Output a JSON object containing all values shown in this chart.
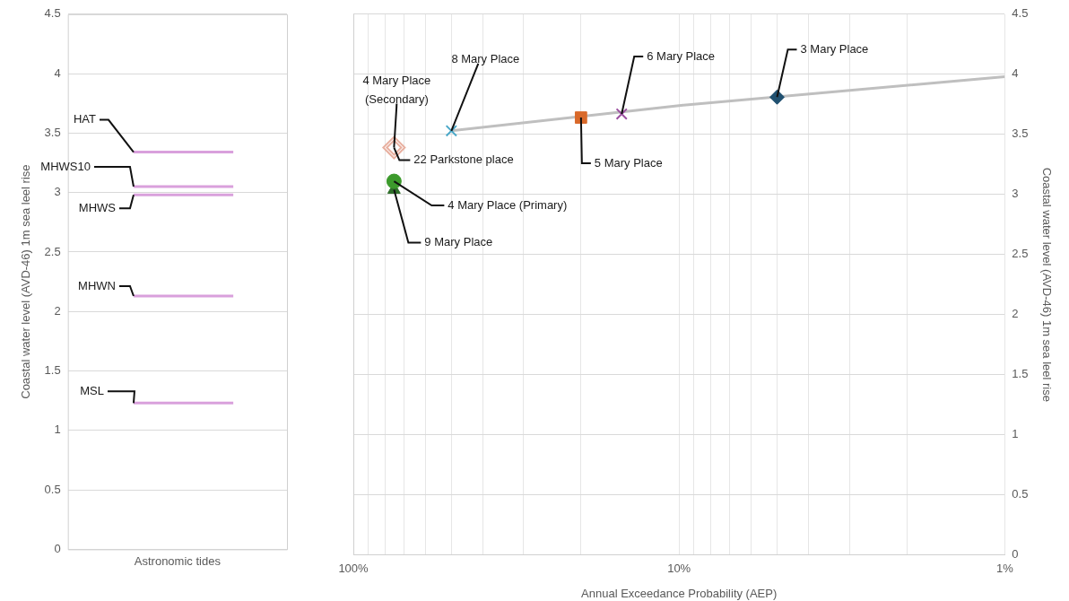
{
  "chart_data": [
    {
      "type": "line",
      "categories": [
        "Astronomic tides"
      ],
      "ylabel": "Coastal water level (AVD-46) 1m sea leel rise",
      "ylim": [
        0,
        4.5
      ],
      "yticks": [
        0,
        0.5,
        1,
        1.5,
        2,
        2.5,
        3,
        3.5,
        4,
        4.5
      ],
      "grid": "y",
      "ref_lines": [
        {
          "axis": "y",
          "value": 3.34,
          "label": "HAT",
          "color": "#d9a0dc"
        },
        {
          "axis": "y",
          "value": 3.05,
          "label": "MHWS10",
          "color": "#d9a0dc"
        },
        {
          "axis": "y",
          "value": 2.98,
          "label": "MHWS",
          "color": "#d9a0dc"
        },
        {
          "axis": "y",
          "value": 2.13,
          "label": "MHWN",
          "color": "#d9a0dc"
        },
        {
          "axis": "y",
          "value": 1.23,
          "label": "MSL",
          "color": "#d9a0dc"
        }
      ]
    },
    {
      "type": "scatter",
      "xlabel": "Annual Exceedance Probability (AEP)",
      "ylabel": "Coastal water level (AVD-46) 1m sea leel rise",
      "log": "x",
      "xlim": [
        100,
        1
      ],
      "xticks": [
        {
          "value": 100,
          "label": "100%"
        },
        {
          "value": 90,
          "label": null
        },
        {
          "value": 80,
          "label": null
        },
        {
          "value": 70,
          "label": null
        },
        {
          "value": 60,
          "label": null
        },
        {
          "value": 50,
          "label": null
        },
        {
          "value": 40,
          "label": null
        },
        {
          "value": 30,
          "label": null
        },
        {
          "value": 20,
          "label": null
        },
        {
          "value": 10,
          "label": "10%"
        },
        {
          "value": 9,
          "label": null
        },
        {
          "value": 8,
          "label": null
        },
        {
          "value": 7,
          "label": null
        },
        {
          "value": 6,
          "label": null
        },
        {
          "value": 5,
          "label": null
        },
        {
          "value": 4,
          "label": null
        },
        {
          "value": 3,
          "label": null
        },
        {
          "value": 2,
          "label": null
        },
        {
          "value": 1,
          "label": "1%"
        }
      ],
      "ylim": [
        0,
        4.5
      ],
      "yticks": [
        0,
        0.5,
        1,
        1.5,
        2,
        2.5,
        3,
        3.5,
        4,
        4.5
      ],
      "grid": true,
      "series": [
        {
          "name": "4 Mary Place (Secondary)",
          "color": "#e8b0a0",
          "marker": "diamond",
          "x": [
            75
          ],
          "values": [
            3.39
          ]
        },
        {
          "name": "22 Parkstone place",
          "color": "#e8b0a0",
          "marker": "diamond",
          "x": [
            75
          ],
          "values": [
            3.39
          ]
        },
        {
          "name": "4 Mary Place (Primary)",
          "color": "#3c9a2c",
          "marker": "circle",
          "x": [
            75
          ],
          "values": [
            3.11
          ]
        },
        {
          "name": "9 Mary Place",
          "color": "#2e6e2a",
          "marker": "triangle",
          "x": [
            75
          ],
          "values": [
            3.04
          ]
        },
        {
          "name": "8 Mary Place",
          "color": "#4aa8c8",
          "marker": "cross",
          "x": [
            50
          ],
          "values": [
            3.53
          ]
        },
        {
          "name": "5 Mary Place",
          "color": "#d9692a",
          "marker": "square",
          "x": [
            20
          ],
          "values": [
            3.64
          ]
        },
        {
          "name": "6 Mary Place",
          "color": "#9b4fa0",
          "marker": "cross",
          "x": [
            15
          ],
          "values": [
            3.67
          ]
        },
        {
          "name": "3 Mary Place",
          "color": "#1f5070",
          "marker": "diamond",
          "x": [
            5
          ],
          "values": [
            3.81
          ]
        },
        {
          "type": "line",
          "color": "#bfbfbf",
          "x": [
            50,
            10,
            1
          ],
          "values": [
            3.53,
            3.74,
            3.98
          ]
        }
      ]
    }
  ]
}
